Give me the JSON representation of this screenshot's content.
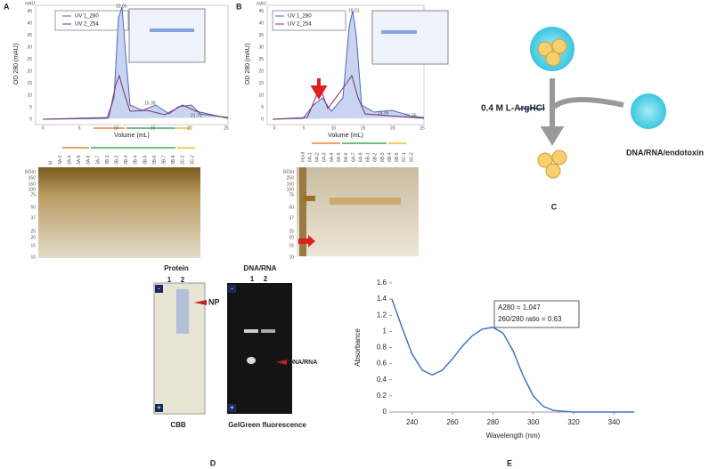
{
  "panel_a": {
    "label": "A",
    "unit": "mAU",
    "ylabel": "OD 280 (mAU)",
    "xlabel": "Volume (mL)",
    "legend": [
      "UV 1_280",
      "UV 2_254"
    ],
    "peaks": [
      "10.65",
      "15.39",
      "21.75"
    ],
    "yticks": [
      0,
      5,
      10,
      15,
      20,
      25,
      30,
      35,
      40,
      45
    ],
    "xticks": [
      0,
      5,
      10,
      15,
      20,
      25
    ],
    "lanes": [
      "M",
      "3A-3",
      "3A-4",
      "3A-5",
      "3A-6",
      "3A-7",
      "3B-1",
      "3B-2",
      "3B-3",
      "3B-4",
      "3B-5",
      "3B-6",
      "3B-7",
      "3B-8",
      "3C-1",
      "3C-2"
    ],
    "kda": [
      "(kDa)",
      "250",
      "150",
      "100",
      "75",
      "50",
      "37",
      "25",
      "20",
      "15",
      "10"
    ]
  },
  "panel_b": {
    "label": "B",
    "unit": "mAU",
    "ylabel": "OD 280 (mAU)",
    "xlabel": "Volume (mL)",
    "legend": [
      "UV 1_280",
      "UV 2_254"
    ],
    "peaks": [
      "10.51",
      "14.95",
      "21.25"
    ],
    "yticks": [
      0,
      5,
      10,
      15,
      20,
      25,
      30,
      35,
      40,
      45
    ],
    "xticks": [
      0,
      5,
      10,
      15,
      20,
      25
    ],
    "lanes": [
      "Input",
      "6A-1",
      "6A-2",
      "6A-3",
      "6A-4",
      "6A-5",
      "6A-6",
      "6A-7",
      "6A-8",
      "6B-1",
      "6B-2",
      "6B-3",
      "6B-4",
      "6B-5",
      "6C-1",
      "6C-2"
    ],
    "kda": [
      "(kDa)",
      "250",
      "150",
      "100",
      "75",
      "50",
      "37",
      "25",
      "20",
      "15",
      "10"
    ]
  },
  "panel_c": {
    "label": "C",
    "reagent": "0.4 M L-ArgHCl",
    "removed": "DNA/RNA/endotoxin"
  },
  "panel_d": {
    "label": "D",
    "protein_title": "Protein",
    "protein_lanes": [
      "1",
      "2"
    ],
    "np": "NP",
    "cbb": "CBB",
    "dna_title": "DNA/RNA",
    "dna_lanes": [
      "1",
      "2"
    ],
    "dna_band": "DNA/RNA",
    "fluor": "GelGreen fluorescence",
    "minus": "-",
    "plus": "+"
  },
  "chart_data": {
    "type": "line",
    "label": "E",
    "xlabel": "Wavelength (nm)",
    "ylabel": "Absorbance",
    "annotations": [
      "A280 = 1.047",
      "260/280 ratio = 0.63"
    ],
    "x": [
      230,
      235,
      240,
      245,
      250,
      255,
      260,
      265,
      270,
      275,
      280,
      285,
      290,
      295,
      300,
      305,
      310,
      320,
      330,
      340,
      350
    ],
    "series": [
      {
        "color": "#4472c4",
        "values": [
          1.4,
          1.05,
          0.72,
          0.52,
          0.46,
          0.52,
          0.66,
          0.82,
          0.95,
          1.03,
          1.05,
          0.98,
          0.76,
          0.45,
          0.2,
          0.07,
          0.02,
          0,
          0,
          0,
          0
        ]
      }
    ],
    "xlim": [
      230,
      350
    ],
    "xticks": [
      240,
      260,
      280,
      300,
      320,
      340
    ],
    "ylim": [
      0,
      1.6
    ],
    "yticks": [
      0,
      0.2,
      0.4,
      0.6,
      0.8,
      1,
      1.2,
      1.4,
      1.6
    ]
  }
}
